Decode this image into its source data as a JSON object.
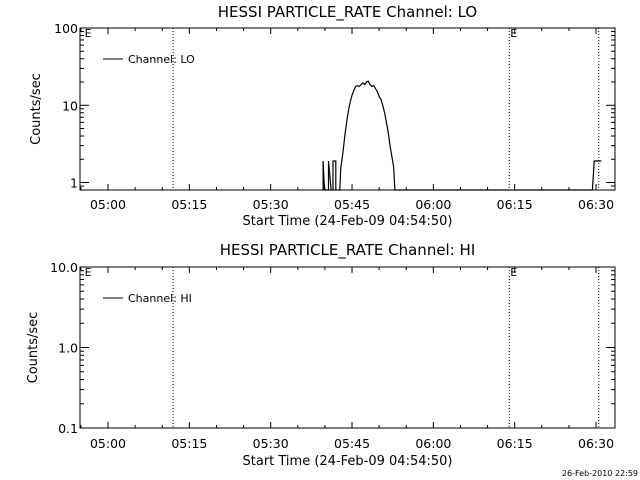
{
  "chart_data": [
    {
      "type": "line",
      "title": "HESSI PARTICLE_RATE Channel: LO",
      "xlabel": "Start Time (24-Feb-09 04:54:50)",
      "ylabel": "Counts/sec",
      "yscale": "log",
      "xlim": [
        "04:54:50",
        "06:33:30"
      ],
      "ylim": [
        0.8,
        100
      ],
      "xticks": [
        "05:00",
        "05:15",
        "05:30",
        "05:45",
        "06:00",
        "06:15",
        "06:30"
      ],
      "yticks": [
        "1",
        "10",
        "100"
      ],
      "legend": "top-left",
      "markers": [
        {
          "time": "04:55:30",
          "label": "E"
        },
        {
          "time": "06:14:00",
          "label": "E"
        }
      ],
      "vlines": [
        "05:12:00",
        "06:14:00",
        "06:30:30"
      ],
      "series": [
        {
          "name": "Channel: LO",
          "points": [
            [
              "05:39:40",
              0.8
            ],
            [
              "05:39:40",
              1.9
            ],
            [
              "05:39:55",
              0.8
            ],
            [
              "05:40:40",
              0.8
            ],
            [
              "05:40:40",
              1.9
            ],
            [
              "05:41:10",
              0.8
            ],
            [
              "05:41:30",
              0.8
            ],
            [
              "05:41:30",
              1.9
            ],
            [
              "05:42:00",
              1.9
            ],
            [
              "05:42:00",
              0.8
            ],
            [
              "05:42:45",
              0.8
            ],
            [
              "05:42:55",
              1.5
            ],
            [
              "05:43:20",
              2.5
            ],
            [
              "05:43:40",
              4
            ],
            [
              "05:44:00",
              6
            ],
            [
              "05:44:20",
              8.5
            ],
            [
              "05:44:40",
              11
            ],
            [
              "05:45:00",
              13.5
            ],
            [
              "05:45:20",
              15.5
            ],
            [
              "05:45:40",
              17.5
            ],
            [
              "05:46:00",
              18
            ],
            [
              "05:46:20",
              17.5
            ],
            [
              "05:46:40",
              18.5
            ],
            [
              "05:47:00",
              19.5
            ],
            [
              "05:47:20",
              18.5
            ],
            [
              "05:47:40",
              20
            ],
            [
              "05:48:00",
              20.5
            ],
            [
              "05:48:20",
              18.5
            ],
            [
              "05:48:40",
              17.5
            ],
            [
              "05:49:00",
              18
            ],
            [
              "05:49:20",
              16.5
            ],
            [
              "05:49:40",
              15
            ],
            [
              "05:50:00",
              13
            ],
            [
              "05:50:20",
              12
            ],
            [
              "05:50:40",
              10
            ],
            [
              "05:51:00",
              8
            ],
            [
              "05:51:20",
              6
            ],
            [
              "05:51:40",
              4.5
            ],
            [
              "05:52:00",
              3
            ],
            [
              "05:52:20",
              2.2
            ],
            [
              "05:52:40",
              1.6
            ],
            [
              "05:52:55",
              0.8
            ],
            [
              "06:29:20",
              0.8
            ],
            [
              "06:29:40",
              1.9
            ],
            [
              "06:31:00",
              1.9
            ]
          ]
        }
      ]
    },
    {
      "type": "line",
      "title": "HESSI PARTICLE_RATE Channel: HI",
      "xlabel": "Start Time (24-Feb-09 04:54:50)",
      "ylabel": "Counts/sec",
      "yscale": "log",
      "xlim": [
        "04:54:50",
        "06:33:30"
      ],
      "ylim": [
        0.1,
        10
      ],
      "xticks": [
        "05:00",
        "05:15",
        "05:30",
        "05:45",
        "06:00",
        "06:15",
        "06:30"
      ],
      "yticks": [
        "0.1",
        "1.0",
        "10.0"
      ],
      "legend": "top-left",
      "markers": [
        {
          "time": "04:55:30",
          "label": "E"
        },
        {
          "time": "06:14:00",
          "label": "E"
        }
      ],
      "vlines": [
        "05:12:00",
        "06:14:00",
        "06:30:30"
      ],
      "series": [
        {
          "name": "Channel: HI",
          "points": []
        }
      ]
    }
  ],
  "footer": {
    "timestamp": "26-Feb-2010 22:59"
  }
}
